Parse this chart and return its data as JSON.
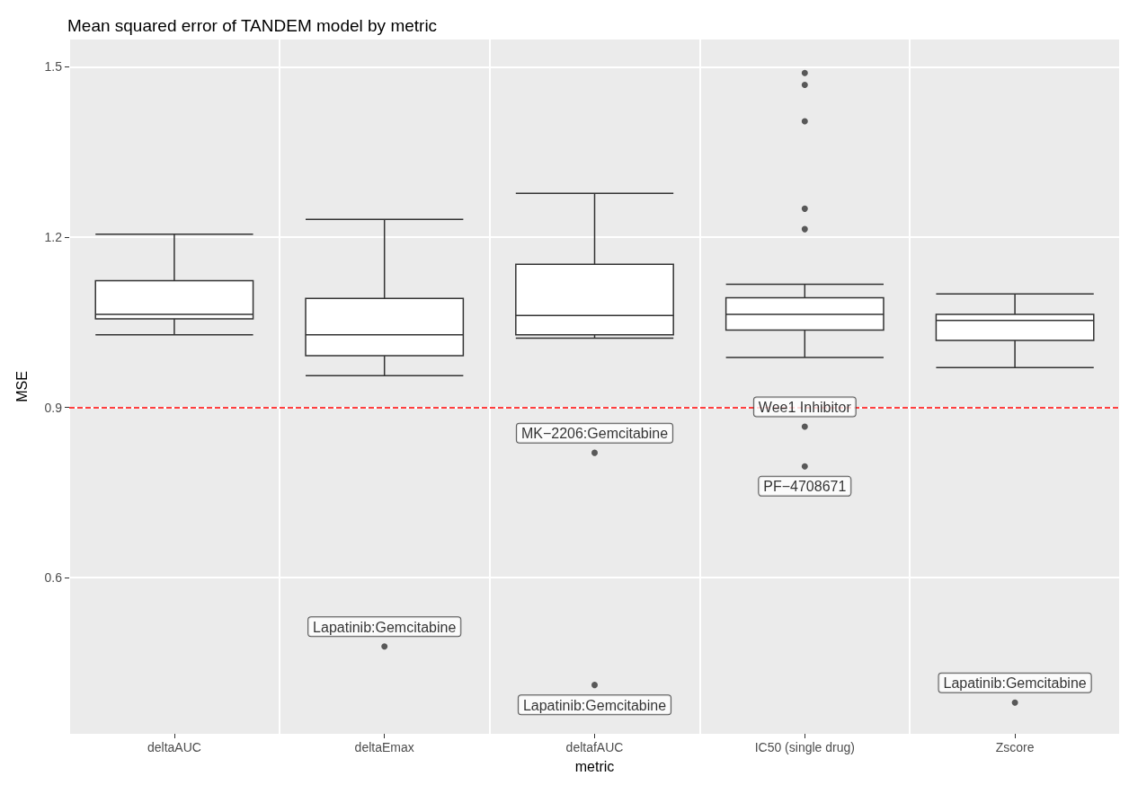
{
  "chart_data": {
    "type": "box",
    "title": "Mean squared error of TANDEM model by metric",
    "xlabel": "metric",
    "ylabel": "MSE",
    "categories": [
      "deltaAUC",
      "deltaEmax",
      "deltafAUC",
      "IC50 (single drug)",
      "Zscore"
    ],
    "boxes": [
      {
        "low": 1.028,
        "q1": 1.056,
        "median": 1.064,
        "q3": 1.123,
        "high": 1.205
      },
      {
        "low": 0.956,
        "q1": 0.991,
        "median": 1.028,
        "q3": 1.092,
        "high": 1.231
      },
      {
        "low": 1.022,
        "q1": 1.028,
        "median": 1.062,
        "q3": 1.152,
        "high": 1.277
      },
      {
        "low": 0.988,
        "q1": 1.036,
        "median": 1.064,
        "q3": 1.093,
        "high": 1.117
      },
      {
        "low": 0.97,
        "q1": 1.018,
        "median": 1.053,
        "q3": 1.064,
        "high": 1.1
      }
    ],
    "series": [
      {
        "type": "scatter",
        "color": "#333333",
        "x": [
          "deltaEmax",
          "deltafAUC",
          "deltafAUC",
          "IC50 (single drug)",
          "IC50 (single drug)",
          "IC50 (single drug)",
          "IC50 (single drug)",
          "IC50 (single drug)",
          "IC50 (single drug)",
          "IC50 (single drug)",
          "Zscore"
        ],
        "values": [
          0.479,
          0.82,
          0.411,
          1.489,
          1.468,
          1.404,
          1.25,
          1.214,
          0.866,
          0.796,
          0.38
        ]
      }
    ],
    "ylim": [
      0.325,
      1.548
    ],
    "yticks": [
      0.6,
      0.9,
      1.2,
      1.5
    ],
    "grid": true,
    "legend": false,
    "marker": "circle",
    "ref_lines": [
      {
        "axis": "y",
        "value": 0.9,
        "color": "#ff0000",
        "line_style": "dashed"
      }
    ],
    "annotations": [
      {
        "text": "Lapatinib:Gemcitabine",
        "x": "deltaEmax",
        "y": 0.479
      },
      {
        "text": "MK−2206:Gemcitabine",
        "x": "deltafAUC",
        "y": 0.82
      },
      {
        "text": "Lapatinib:Gemcitabine",
        "x": "deltafAUC",
        "y": 0.411
      },
      {
        "text": "Wee1 Inhibitor",
        "x": "IC50 (single drug)",
        "y": 0.866
      },
      {
        "text": "PF−4708671",
        "x": "IC50 (single drug)",
        "y": 0.796
      },
      {
        "text": "Lapatinib:Gemcitabine",
        "x": "Zscore",
        "y": 0.38
      }
    ]
  }
}
